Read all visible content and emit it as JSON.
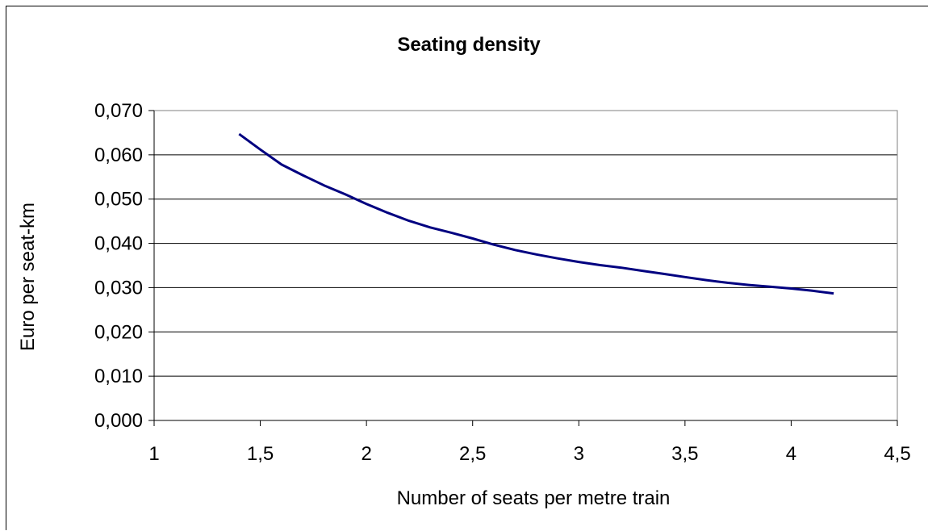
{
  "chart_data": {
    "type": "line",
    "title": "Seating density",
    "xlabel": "Number of seats per metre train",
    "ylabel": "Euro per seat-km",
    "xlim": [
      1,
      4.5
    ],
    "ylim": [
      0,
      0.07
    ],
    "x_ticks": [
      1,
      1.5,
      2,
      2.5,
      3,
      3.5,
      4,
      4.5
    ],
    "x_tick_labels": [
      "1",
      "1,5",
      "2",
      "2,5",
      "3",
      "3,5",
      "4",
      "4,5"
    ],
    "y_ticks": [
      0,
      0.01,
      0.02,
      0.03,
      0.04,
      0.05,
      0.06,
      0.07
    ],
    "y_tick_labels": [
      "0,000",
      "0,010",
      "0,020",
      "0,030",
      "0,040",
      "0,050",
      "0,060",
      "0,070"
    ],
    "grid": "horizontal",
    "legend": "none",
    "series": [
      {
        "color": "#000080",
        "x": [
          1.4,
          1.5,
          1.6,
          1.7,
          1.8,
          1.9,
          2.0,
          2.1,
          2.2,
          2.3,
          2.4,
          2.5,
          2.6,
          2.7,
          2.8,
          2.9,
          3.0,
          3.1,
          3.2,
          3.3,
          3.4,
          3.5,
          3.6,
          3.7,
          3.8,
          3.9,
          4.0,
          4.1,
          4.2
        ],
        "values": [
          0.0647,
          0.0612,
          0.0578,
          0.0554,
          0.0531,
          0.0511,
          0.0489,
          0.0469,
          0.0451,
          0.0436,
          0.0424,
          0.0411,
          0.0397,
          0.0385,
          0.0375,
          0.0366,
          0.0358,
          0.0351,
          0.0345,
          0.0338,
          0.0331,
          0.0324,
          0.0317,
          0.0311,
          0.0306,
          0.0302,
          0.0298,
          0.0293,
          0.0287
        ]
      }
    ]
  }
}
